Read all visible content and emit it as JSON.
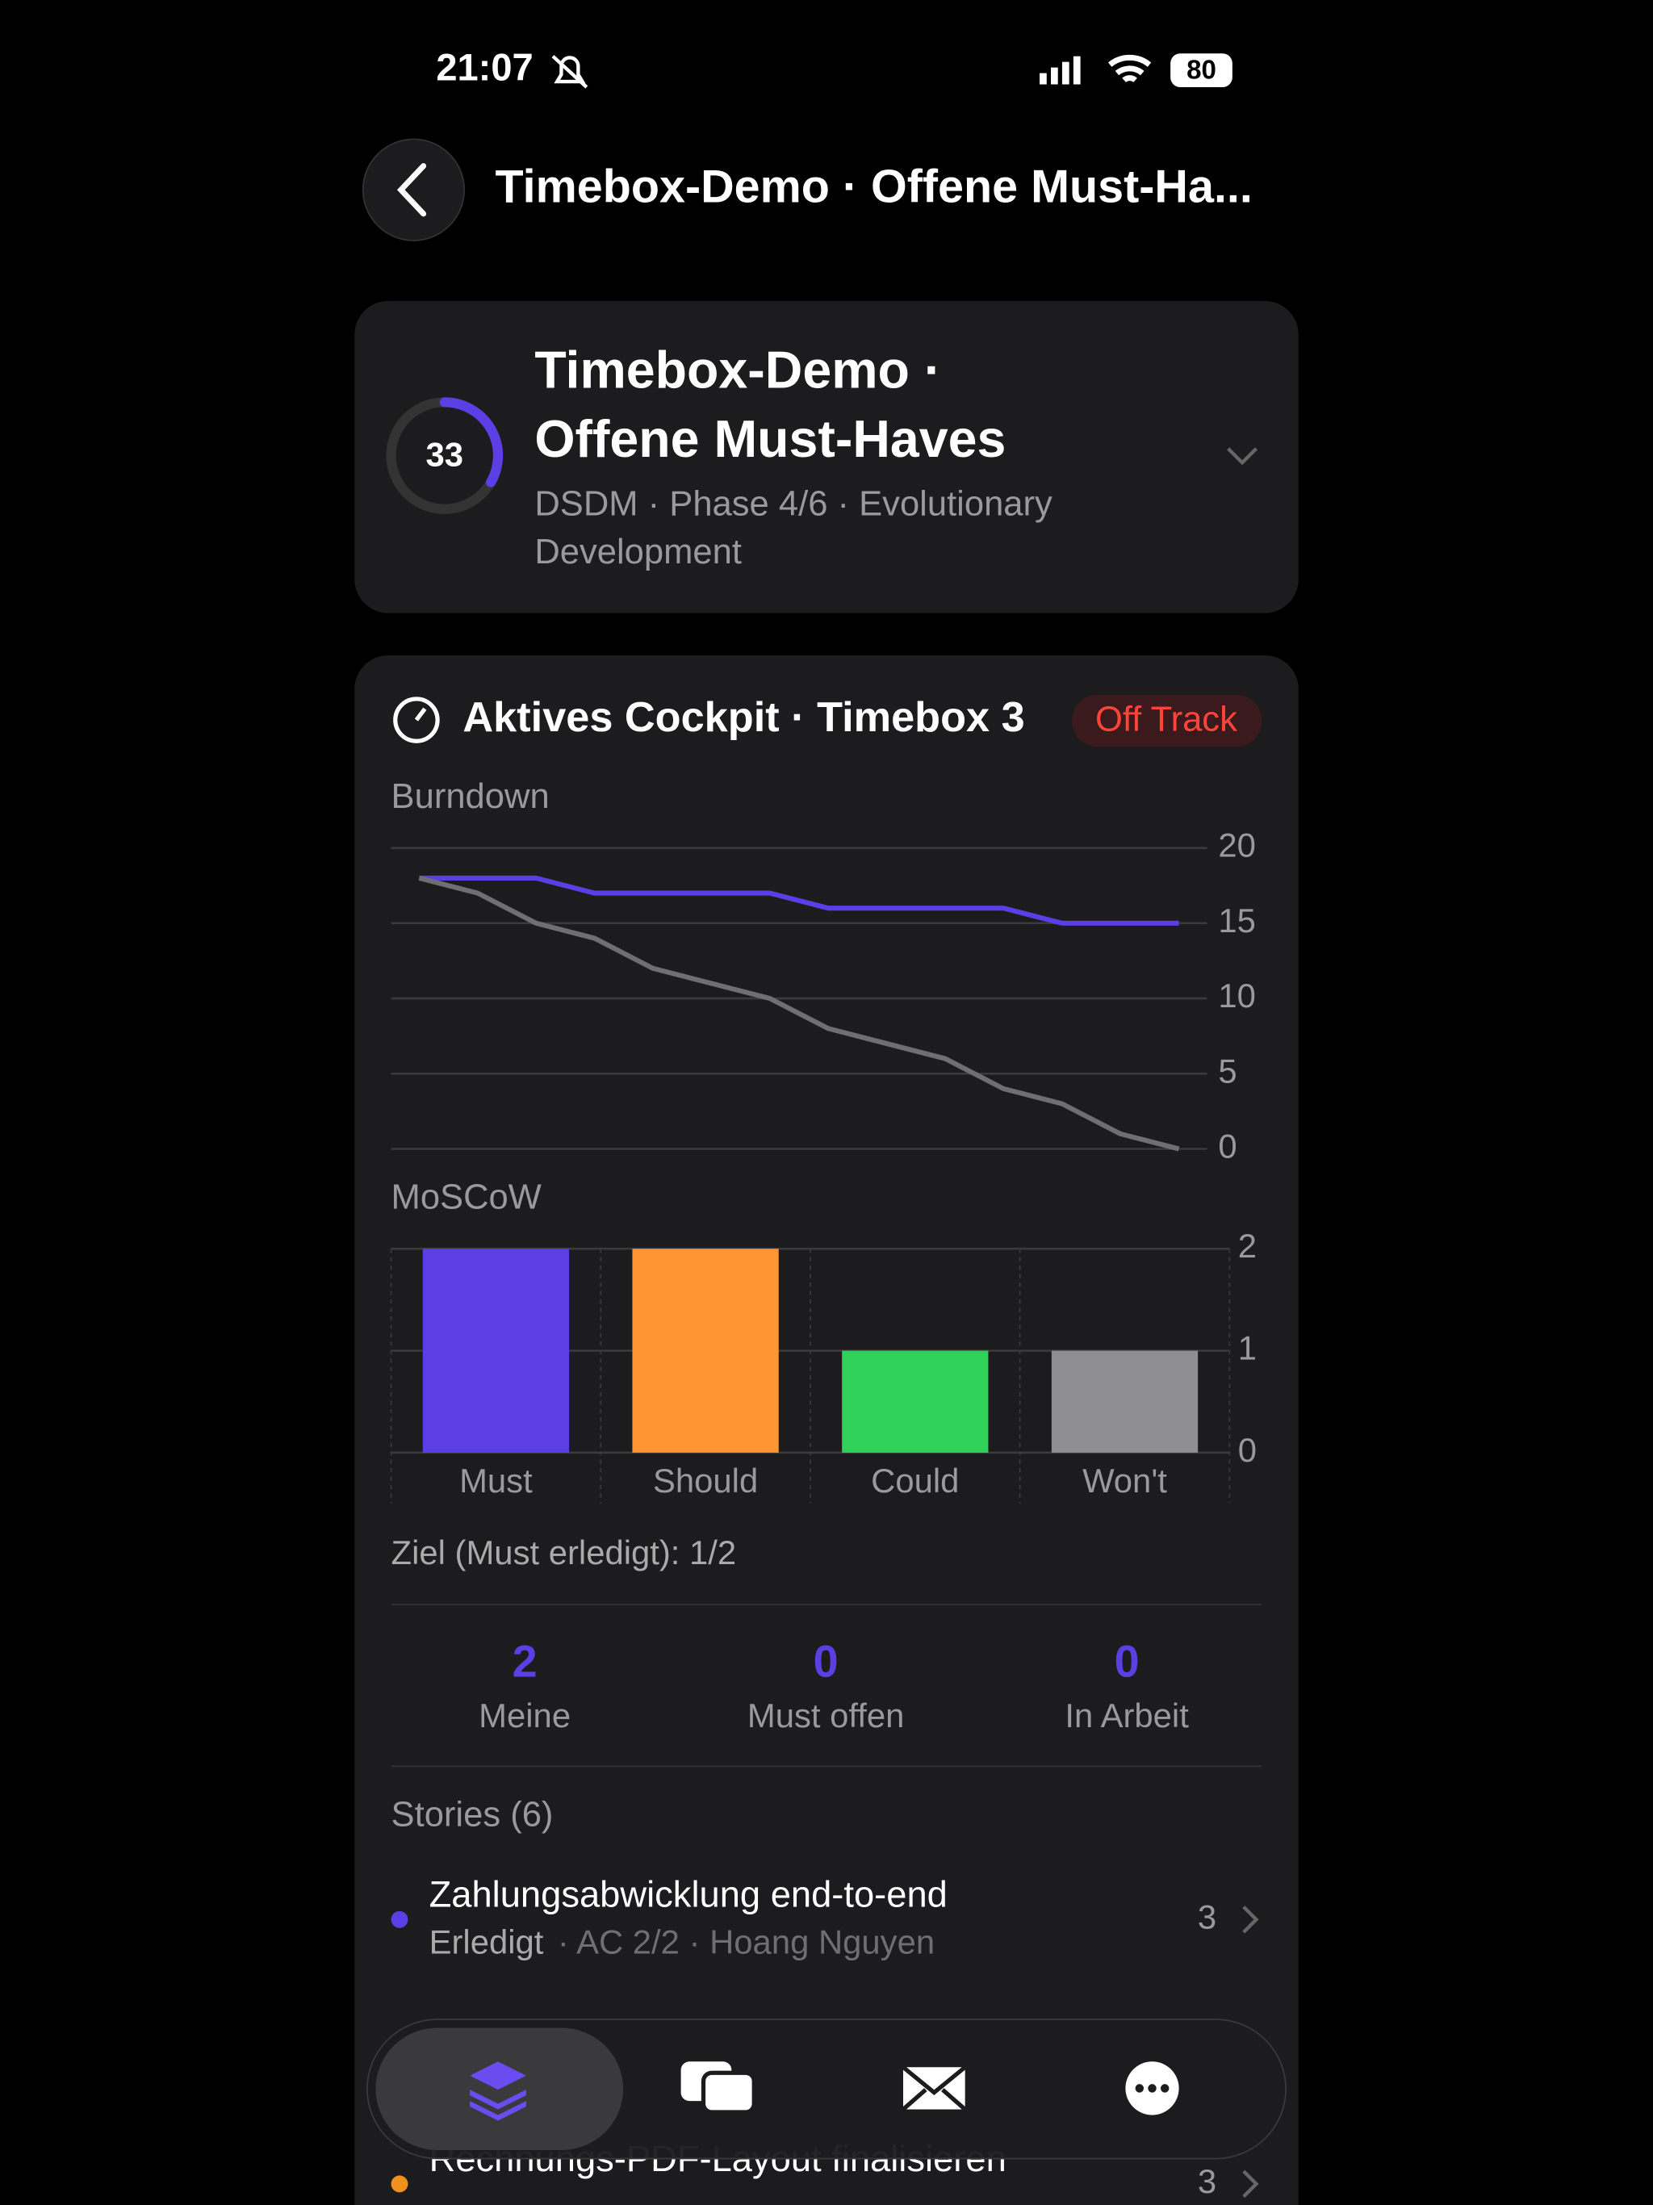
{
  "status_bar": {
    "time": "21:07",
    "battery": "80"
  },
  "header": {
    "title": "Timebox-Demo · Offene Must-Ha..."
  },
  "project": {
    "score": "33",
    "title_line1": "Timebox-Demo ·",
    "title_line2": "Offene Must-Haves",
    "subtitle_line1": "DSDM · Phase 4/6 · Evolutionary",
    "subtitle_line2": "Development"
  },
  "cockpit": {
    "title": "Aktives Cockpit · Timebox 3",
    "status": "Off Track",
    "goal": "Ziel (Must erledigt): 1/2",
    "stats": [
      {
        "value": 2,
        "label": "Meine"
      },
      {
        "value": 0,
        "label": "Must offen"
      },
      {
        "value": 0,
        "label": "In Arbeit"
      }
    ],
    "stories_title": "Stories (6)",
    "stories": [
      {
        "title": "Zahlungsabwicklung end-to-end",
        "status": "Erledigt",
        "meta": "· AC 2/2 · Hoang Nguyen",
        "points": 3,
        "color": "#5b3fe4"
      },
      {
        "title": "Rechnungs-PDF-Layout finalisieren",
        "points": 3,
        "color": "#f0901f"
      }
    ]
  },
  "chart_data": [
    {
      "type": "line",
      "title": "Burndown",
      "categories": [
        null,
        null,
        null,
        null,
        null,
        null,
        null,
        null,
        null,
        null,
        null,
        null,
        null,
        null
      ],
      "series": [
        {
          "color": "#5b3fe4",
          "values": [
            18,
            18,
            18,
            17,
            17,
            17,
            17,
            16,
            16,
            16,
            16,
            15,
            15,
            15
          ]
        },
        {
          "color": "#6e6e73",
          "values": [
            18,
            17,
            15,
            14,
            12,
            11,
            10,
            8,
            7,
            6,
            4,
            3,
            1,
            0
          ]
        }
      ],
      "ylim": [
        0,
        20
      ],
      "yticks": [
        0,
        5,
        10,
        15,
        20
      ],
      "grid": true
    },
    {
      "type": "bar",
      "title": "MoSCoW",
      "categories": [
        "Must",
        "Should",
        "Could",
        "Won't"
      ],
      "values": [
        2,
        2,
        1,
        1
      ],
      "colors": [
        "#5b3fe4",
        "#ff9533",
        "#30d158",
        "#8e8e93"
      ],
      "ylim": [
        0,
        2
      ],
      "yticks": [
        0,
        1,
        2
      ],
      "grid": true
    }
  ]
}
